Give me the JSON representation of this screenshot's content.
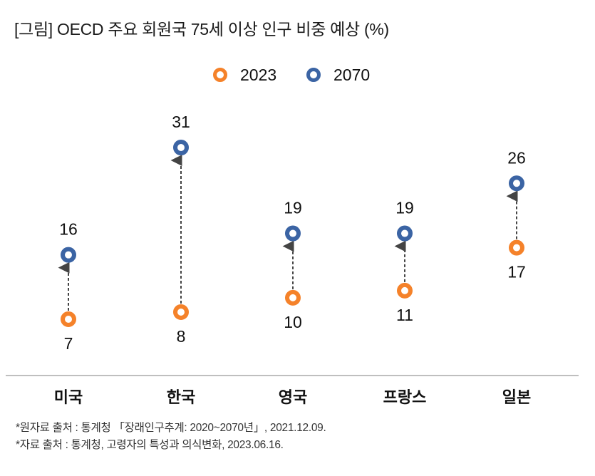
{
  "title": "[그림] OECD 주요 회원국 75세 이상 인구 비중 예상 (%)",
  "sources": [
    "*원자료 출처 : 통계청 「장래인구추계: 2020~2070년」, 2021.12.09.",
    "*자료 출처 : 통계청, 고령자의 특성과 의식변화, 2023.06.16."
  ],
  "colors": {
    "s2023": "#f5822a",
    "s2070": "#3b64a4",
    "arrow": "#444444",
    "axis": "#aaaaaa"
  },
  "chart_data": {
    "type": "scatter",
    "subtype": "dumbbell-arrow",
    "title": "[그림] OECD 주요 회원국 75세 이상 인구 비중 예상 (%)",
    "xlabel": "",
    "ylabel": "",
    "categories": [
      "미국",
      "한국",
      "영국",
      "프랑스",
      "일본"
    ],
    "series": [
      {
        "name": "2023",
        "values": [
          7,
          8,
          10,
          11,
          17
        ]
      },
      {
        "name": "2070",
        "values": [
          16,
          31,
          19,
          19,
          26
        ]
      }
    ],
    "ylim": [
      0,
      33
    ],
    "grid": false,
    "legend": "top-center"
  }
}
